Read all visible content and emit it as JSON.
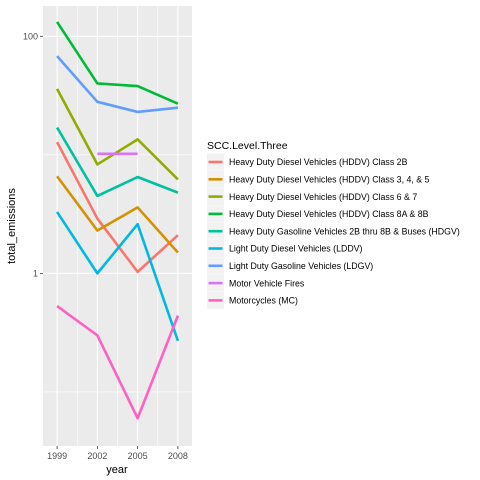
{
  "chart_data": {
    "type": "line",
    "xlabel": "year",
    "ylabel": "total_emissions",
    "x": [
      1999,
      2002,
      2005,
      2008
    ],
    "x_tick_labels": [
      "1999",
      "2002",
      "2005",
      "2008"
    ],
    "y_scale": "log10",
    "ylim": [
      0.035,
      180
    ],
    "y_ticks": [
      1,
      100
    ],
    "y_tick_labels": [
      "1",
      "100"
    ],
    "grid": true,
    "legend": {
      "title": "SCC.Level.Three",
      "placement": "right"
    },
    "series": [
      {
        "name": "Heavy Duty Diesel Vehicles (HDDV) Class 2B",
        "color": "#F8766D",
        "values": [
          12.8,
          2.9,
          1.03,
          2.1
        ]
      },
      {
        "name": "Heavy Duty Diesel Vehicles (HDDV) Class 3, 4, & 5",
        "color": "#D39200",
        "values": [
          6.6,
          2.3,
          3.6,
          1.5
        ]
      },
      {
        "name": "Heavy Duty Diesel Vehicles (HDDV) Class 6 & 7",
        "color": "#93AA00",
        "values": [
          36,
          8.3,
          13.5,
          6.2
        ]
      },
      {
        "name": "Heavy Duty Diesel Vehicles (HDDV) Class 8A & 8B",
        "color": "#00BA38",
        "values": [
          132,
          40,
          38,
          27
        ]
      },
      {
        "name": "Heavy Duty Gasoline Vehicles 2B thru 8B & Buses (HDGV)",
        "color": "#00C19F",
        "values": [
          17,
          4.5,
          6.5,
          4.8
        ]
      },
      {
        "name": "Light Duty Diesel Vehicles (LDDV)",
        "color": "#00B9E3",
        "values": [
          3.3,
          1.0,
          2.6,
          0.27
        ]
      },
      {
        "name": "Light Duty Gasoline Vehicles (LDGV)",
        "color": "#619CFF",
        "values": [
          68,
          28,
          23,
          25
        ]
      },
      {
        "name": "Motor Vehicle Fires",
        "color": "#DB72FB",
        "values": [
          null,
          10.2,
          10.2,
          null
        ]
      },
      {
        "name": "Motorcycles (MC)",
        "color": "#FF61C3",
        "values": [
          0.53,
          0.3,
          0.06,
          0.44
        ]
      }
    ]
  }
}
